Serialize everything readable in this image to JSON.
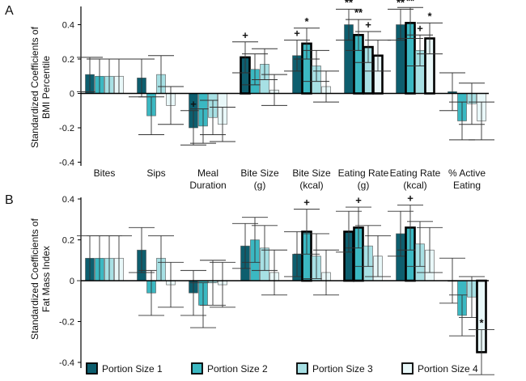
{
  "chart_data": [
    {
      "panel_label": "A",
      "type": "bar",
      "ylabel": "Standardized Coefficients of BMI Percentile",
      "ylabel_lines": [
        "Standardized Coefficients of",
        "BMI Percentile"
      ],
      "ylim": [
        -0.45,
        0.45
      ],
      "yticks": [
        -0.4,
        -0.2,
        0,
        0.2,
        0.4
      ],
      "ytick_labels": [
        "-0.4",
        "-0.2",
        "0",
        "0.2",
        "0.4"
      ],
      "categories": [
        "Bites",
        "Sips",
        "Meal Duration",
        "Bite Size (g)",
        "Bite Size (kcal)",
        "Eating Rate (g)",
        "Eating Rate (kcal)",
        "% Active Eating"
      ],
      "category_lines": [
        [
          "Bites"
        ],
        [
          "Sips"
        ],
        [
          "Meal",
          "Duration"
        ],
        [
          "Bite Size",
          "(g)"
        ],
        [
          "Bite Size",
          "(kcal)"
        ],
        [
          "Eating Rate",
          "(g)"
        ],
        [
          "Eating Rate",
          "(kcal)"
        ],
        [
          "% Active",
          "Eating"
        ]
      ],
      "series": [
        {
          "name": "Portion Size 1",
          "values": [
            0.11,
            0.09,
            -0.2,
            0.21,
            0.22,
            0.4,
            0.4,
            0.01
          ],
          "errors": [
            0.1,
            0.11,
            0.1,
            0.09,
            0.09,
            0.09,
            0.09,
            0.11
          ]
        },
        {
          "name": "Portion Size 2",
          "values": [
            0.1,
            -0.13,
            -0.19,
            0.14,
            0.29,
            0.34,
            0.41,
            -0.16
          ],
          "errors": [
            0.1,
            0.11,
            0.1,
            0.09,
            0.09,
            0.09,
            0.09,
            0.11
          ]
        },
        {
          "name": "Portion Size 3",
          "values": [
            0.1,
            0.11,
            -0.14,
            0.17,
            0.16,
            0.27,
            0.25,
            -0.06
          ],
          "errors": [
            0.1,
            0.11,
            0.1,
            0.09,
            0.09,
            0.09,
            0.09,
            0.12
          ]
        },
        {
          "name": "Portion Size 4",
          "values": [
            0.1,
            -0.07,
            -0.18,
            0.02,
            0.04,
            0.22,
            0.32,
            -0.16
          ],
          "errors": [
            0.1,
            0.11,
            0.1,
            0.09,
            0.09,
            0.09,
            0.09,
            0.11
          ]
        }
      ],
      "highlight": [
        [
          false,
          false,
          false,
          true,
          false,
          false,
          false,
          false
        ],
        [
          false,
          false,
          false,
          false,
          true,
          true,
          true,
          false
        ],
        [
          false,
          false,
          false,
          false,
          false,
          true,
          false,
          false
        ],
        [
          false,
          false,
          false,
          false,
          false,
          true,
          true,
          false
        ]
      ],
      "annotations": [
        {
          "category": 2,
          "series": 0,
          "text": "+"
        },
        {
          "category": 3,
          "series": 0,
          "text": "+"
        },
        {
          "category": 4,
          "series": 0,
          "text": "+"
        },
        {
          "category": 4,
          "series": 1,
          "text": "*"
        },
        {
          "category": 5,
          "series": 0,
          "text": "**"
        },
        {
          "category": 5,
          "series": 1,
          "text": "**"
        },
        {
          "category": 5,
          "series": 2,
          "text": "+"
        },
        {
          "category": 6,
          "series": 0,
          "text": "**"
        },
        {
          "category": 6,
          "series": 1,
          "text": "**"
        },
        {
          "category": 6,
          "series": 2,
          "text": "+"
        },
        {
          "category": 6,
          "series": 3,
          "text": "*"
        }
      ]
    },
    {
      "panel_label": "B",
      "type": "bar",
      "ylabel": "Standardized Coefficients of Fat Mass Index",
      "ylabel_lines": [
        "Standardized Coefficients of",
        "Fat Mass Index"
      ],
      "ylim": [
        -0.45,
        0.45
      ],
      "yticks": [
        -0.4,
        -0.2,
        0,
        0.2,
        0.4
      ],
      "ytick_labels": [
        "-0.4",
        "-0.2",
        "0",
        "0.2",
        "0.4"
      ],
      "categories": [
        "Bites",
        "Sips",
        "Meal Duration",
        "Bite Size (g)",
        "Bite Size (kcal)",
        "Eating Rate (g)",
        "Eating Rate (kcal)",
        "% Active Eating"
      ],
      "series": [
        {
          "name": "Portion Size 1",
          "values": [
            0.11,
            0.15,
            -0.06,
            0.17,
            0.13,
            0.24,
            0.23,
            0.0
          ],
          "errors": [
            0.11,
            0.11,
            0.11,
            0.11,
            0.11,
            0.1,
            0.11,
            0.11
          ]
        },
        {
          "name": "Portion Size 2",
          "values": [
            0.11,
            -0.06,
            -0.12,
            0.2,
            0.24,
            0.26,
            0.26,
            -0.17
          ],
          "errors": [
            0.11,
            0.11,
            0.11,
            0.11,
            0.11,
            0.1,
            0.11,
            0.1
          ]
        },
        {
          "name": "Portion Size 3",
          "values": [
            0.11,
            0.11,
            -0.01,
            0.16,
            0.12,
            0.17,
            0.18,
            -0.08
          ],
          "errors": [
            0.11,
            0.11,
            0.11,
            0.11,
            0.11,
            0.1,
            0.11,
            0.1
          ]
        },
        {
          "name": "Portion Size 4",
          "values": [
            0.11,
            -0.02,
            -0.02,
            0.04,
            0.04,
            0.12,
            0.15,
            -0.35
          ],
          "errors": [
            0.11,
            0.11,
            0.11,
            0.11,
            0.11,
            0.1,
            0.11,
            0.11
          ]
        }
      ],
      "highlight": [
        [
          false,
          false,
          false,
          false,
          false,
          true,
          false,
          false
        ],
        [
          false,
          false,
          false,
          false,
          true,
          true,
          true,
          false
        ],
        [
          false,
          false,
          false,
          false,
          false,
          false,
          false,
          false
        ],
        [
          false,
          false,
          false,
          false,
          false,
          false,
          false,
          true
        ]
      ],
      "annotations": [
        {
          "category": 4,
          "series": 1,
          "text": "+"
        },
        {
          "category": 5,
          "series": 1,
          "text": "+"
        },
        {
          "category": 6,
          "series": 1,
          "text": "+"
        },
        {
          "category": 7,
          "series": 3,
          "text": "*"
        }
      ],
      "legend": {
        "placement": "bottom",
        "entries": [
          "Portion Size 1",
          "Portion Size 2",
          "Portion Size 3",
          "Portion Size 4"
        ]
      }
    }
  ],
  "colors": {
    "series": [
      "#0d5e6e",
      "#3bb8c2",
      "#a7e0e4",
      "#e9f8f9"
    ],
    "text": "#111111",
    "axis": "#000000",
    "bar_edge": "#555555",
    "highlight_edge": "#000000",
    "error_bar": "#333333"
  }
}
